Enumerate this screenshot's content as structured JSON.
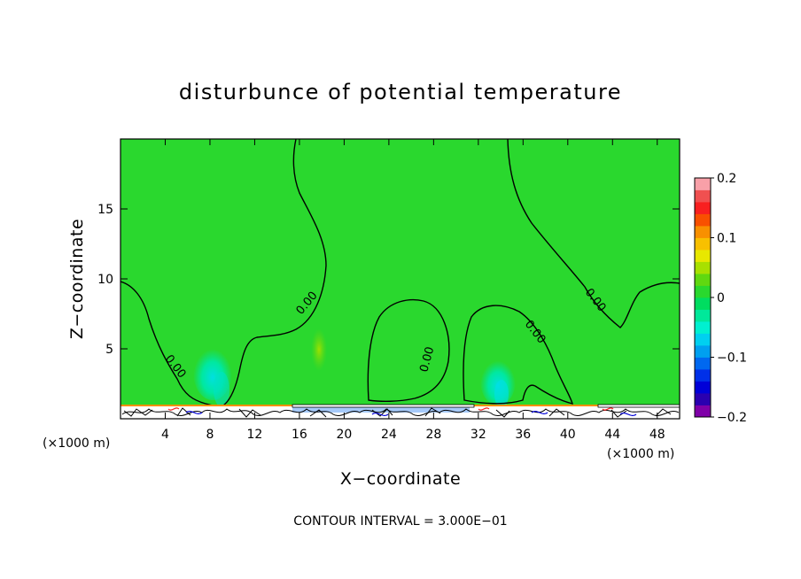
{
  "chart_data": {
    "type": "heatmap",
    "title": "disturbunce of potential temperature",
    "xlabel": "X−coordinate",
    "ylabel": "Z−coordinate",
    "x_unit_left": "(×1000 m)",
    "x_unit_right": "(×1000 m)",
    "xlim": [
      0,
      50
    ],
    "ylim": [
      0,
      20
    ],
    "xticks": [
      4,
      8,
      12,
      16,
      20,
      24,
      28,
      32,
      36,
      40,
      44,
      48
    ],
    "yticks": [
      5,
      10,
      15
    ],
    "colorbar": {
      "vmin": -0.2,
      "vmax": 0.2,
      "tick_values": [
        0.2,
        0.1,
        0,
        -0.1,
        -0.2
      ],
      "tick_labels": [
        "0.2",
        "0.1",
        "0",
        "−0.1",
        "−0.2"
      ],
      "colors": [
        "#7f00a8",
        "#2a00b0",
        "#0000d8",
        "#0030e8",
        "#0068f0",
        "#00a0f0",
        "#00d0f0",
        "#00f0d0",
        "#00e89a",
        "#00dd60",
        "#2ad82e",
        "#60d810",
        "#a8e000",
        "#e8e800",
        "#f8c000",
        "#f89000",
        "#f85000",
        "#f82020",
        "#f05050",
        "#f8a0a8"
      ]
    },
    "field_background_value": 0,
    "contour_level_label": "0.00",
    "contour_interval_text": "CONTOUR INTERVAL = 3.000E−01",
    "features": [
      {
        "name": "negative plume",
        "x_center": 8.5,
        "z_top": 5,
        "min_value": -0.07
      },
      {
        "name": "positive patch",
        "x_center": 17.8,
        "z_center": 4.5,
        "max_value": 0.02
      },
      {
        "name": "negative plume",
        "x_center": 33.8,
        "z_top": 4,
        "min_value": -0.07
      }
    ]
  }
}
